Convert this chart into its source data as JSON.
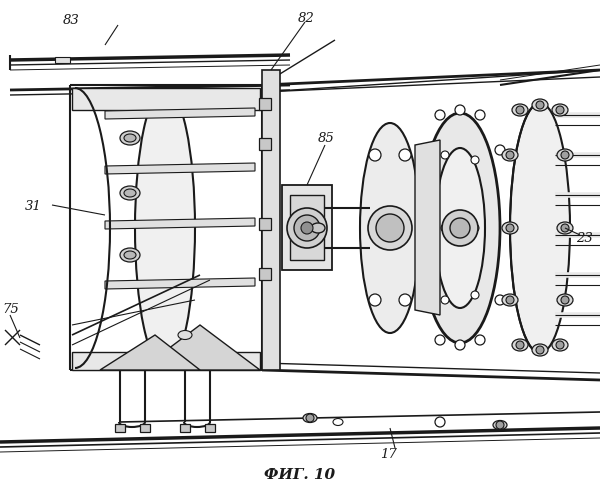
{
  "title": "ФИГ. 10",
  "label_17": "17",
  "label_23": "23",
  "label_31": "31",
  "label_75": "75",
  "label_82": "82",
  "label_83": "83",
  "label_85": "85",
  "bg_color": "#ffffff",
  "line_color": "#1a1a1a",
  "fig_width": 6.0,
  "fig_height": 5.0,
  "dpi": 100
}
